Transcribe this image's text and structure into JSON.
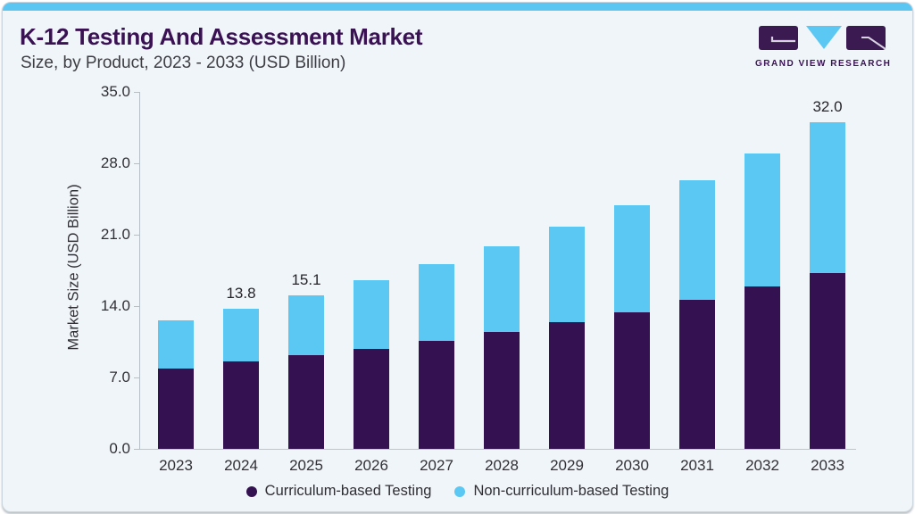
{
  "header": {
    "title": "K-12 Testing And Assessment Market",
    "subtitle": "Size, by Product, 2023 - 2033 (USD Billion)",
    "logo_text": "GRAND VIEW RESEARCH"
  },
  "brand_colors": {
    "accent_strip": "#5ac6f1",
    "title_purple": "#3a1254",
    "logo_purple": "#3a1a50",
    "logo_blue": "#5ac8f3"
  },
  "chart_data": {
    "type": "bar",
    "stacked": true,
    "title": "K-12 Testing And Assessment Market Size, by Product, 2023 - 2033 (USD Billion)",
    "categories": [
      "2023",
      "2024",
      "2025",
      "2026",
      "2027",
      "2028",
      "2029",
      "2030",
      "2031",
      "2032",
      "2033"
    ],
    "series": [
      {
        "name": "Curriculum-based Testing",
        "color": "#341150",
        "values": [
          7.9,
          8.6,
          9.2,
          9.8,
          10.6,
          11.5,
          12.4,
          13.4,
          14.6,
          15.9,
          17.2
        ]
      },
      {
        "name": "Non-curriculum-based Testing",
        "color": "#5ac8f3",
        "values": [
          4.7,
          5.2,
          5.9,
          6.7,
          7.5,
          8.4,
          9.4,
          10.5,
          11.7,
          13.0,
          14.8
        ]
      }
    ],
    "value_labels": [
      "",
      "13.8",
      "15.1",
      "",
      "",
      "",
      "",
      "",
      "",
      "",
      "32.0"
    ],
    "xlabel": "",
    "ylabel": "Market Size (USD Billion)",
    "ylim": [
      0,
      35
    ],
    "ytick_labels": [
      "0.0",
      "7.0",
      "14.0",
      "21.0",
      "28.0",
      "35.0"
    ],
    "grid": false,
    "legend_position": "bottom"
  }
}
